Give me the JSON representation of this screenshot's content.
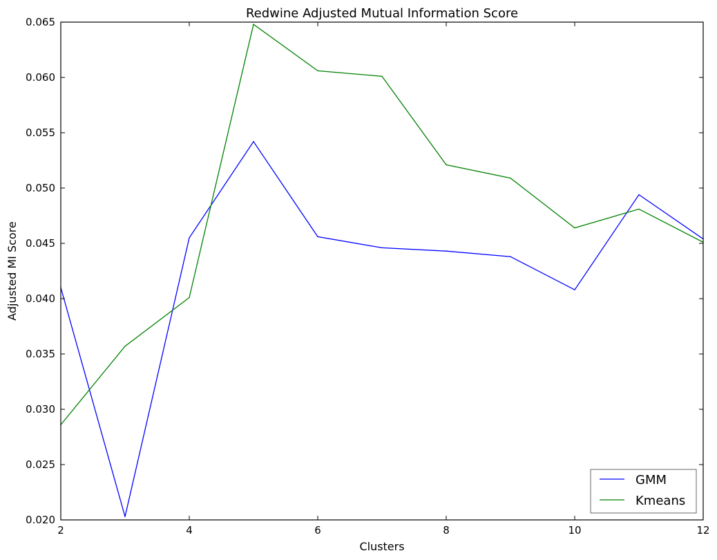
{
  "chart_data": {
    "type": "line",
    "title": "Redwine  Adjusted Mutual Information Score",
    "xlabel": "Clusters",
    "ylabel": "Adjusted MI Score",
    "xlim": [
      2,
      12
    ],
    "ylim": [
      0.02,
      0.065
    ],
    "xticks": [
      2,
      4,
      6,
      8,
      10,
      12
    ],
    "xtick_labels": [
      "2",
      "4",
      "6",
      "8",
      "10",
      "12"
    ],
    "yticks": [
      0.02,
      0.025,
      0.03,
      0.035,
      0.04,
      0.045,
      0.05,
      0.055,
      0.06,
      0.065
    ],
    "ytick_labels": [
      "0.020",
      "0.025",
      "0.030",
      "0.035",
      "0.040",
      "0.045",
      "0.050",
      "0.055",
      "0.060",
      "0.065"
    ],
    "grid": false,
    "legend_position": "lower-right",
    "x": [
      2,
      3,
      4,
      5,
      6,
      7,
      8,
      9,
      10,
      11,
      12
    ],
    "series": [
      {
        "name": "GMM",
        "color": "#0000ff",
        "values": [
          0.041,
          0.0203,
          0.0455,
          0.0542,
          0.0456,
          0.0446,
          0.0443,
          0.0438,
          0.0408,
          0.0494,
          0.0454
        ]
      },
      {
        "name": "Kmeans",
        "color": "#008000",
        "values": [
          0.0286,
          0.0357,
          0.0401,
          0.0648,
          0.0606,
          0.0601,
          0.0521,
          0.0509,
          0.0464,
          0.0481,
          0.0451
        ]
      }
    ]
  }
}
